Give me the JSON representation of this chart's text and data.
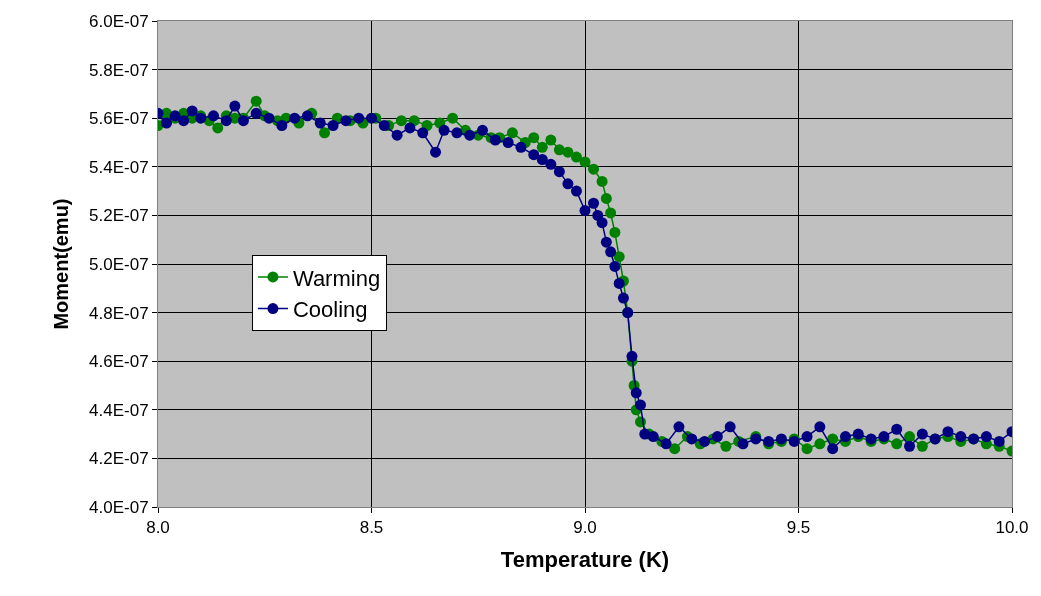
{
  "chart_data": {
    "type": "line",
    "xlabel": "Temperature (K)",
    "ylabel": "Moment(emu)",
    "xlim": [
      8.0,
      10.0
    ],
    "xticks": [
      {
        "value": 8.0,
        "label": "8.0"
      },
      {
        "value": 8.5,
        "label": "8.5"
      },
      {
        "value": 9.0,
        "label": "9.0"
      },
      {
        "value": 9.5,
        "label": "9.5"
      },
      {
        "value": 10.0,
        "label": "10.0"
      }
    ],
    "ylim": [
      4e-07,
      6e-07
    ],
    "yticks": [
      {
        "value": 4e-07,
        "label": "4.0E-07"
      },
      {
        "value": 4.2e-07,
        "label": "4.2E-07"
      },
      {
        "value": 4.4e-07,
        "label": "4.4E-07"
      },
      {
        "value": 4.6e-07,
        "label": "4.6E-07"
      },
      {
        "value": 4.8e-07,
        "label": "4.8E-07"
      },
      {
        "value": 5e-07,
        "label": "5.0E-07"
      },
      {
        "value": 5.2e-07,
        "label": "5.2E-07"
      },
      {
        "value": 5.4e-07,
        "label": "5.4E-07"
      },
      {
        "value": 5.6e-07,
        "label": "5.6E-07"
      },
      {
        "value": 5.8e-07,
        "label": "5.8E-07"
      },
      {
        "value": 6e-07,
        "label": "6.0E-07"
      }
    ],
    "grid": true,
    "legend": "left",
    "marker": "circle",
    "line_style": "solid",
    "series": [
      {
        "name": "Warming",
        "color": "#008000",
        "x": [
          8.0,
          8.02,
          8.04,
          8.06,
          8.08,
          8.1,
          8.12,
          8.14,
          8.16,
          8.18,
          8.2,
          8.23,
          8.25,
          8.28,
          8.3,
          8.33,
          8.36,
          8.39,
          8.42,
          8.45,
          8.48,
          8.51,
          8.54,
          8.57,
          8.6,
          8.63,
          8.66,
          8.69,
          8.72,
          8.75,
          8.78,
          8.8,
          8.83,
          8.86,
          8.88,
          8.9,
          8.92,
          8.94,
          8.96,
          8.98,
          9.0,
          9.02,
          9.04,
          9.05,
          9.06,
          9.07,
          9.08,
          9.09,
          9.1,
          9.11,
          9.115,
          9.12,
          9.13,
          9.15,
          9.18,
          9.21,
          9.24,
          9.27,
          9.3,
          9.33,
          9.36,
          9.4,
          9.43,
          9.46,
          9.49,
          9.52,
          9.55,
          9.58,
          9.61,
          9.64,
          9.67,
          9.7,
          9.73,
          9.76,
          9.79,
          9.82,
          9.85,
          9.88,
          9.91,
          9.94,
          9.97,
          10.0
        ],
        "values": [
          5.57e-07,
          5.62e-07,
          5.6e-07,
          5.62e-07,
          5.6e-07,
          5.61e-07,
          5.59e-07,
          5.56e-07,
          5.61e-07,
          5.6e-07,
          5.6e-07,
          5.67e-07,
          5.61e-07,
          5.59e-07,
          5.6e-07,
          5.58e-07,
          5.62e-07,
          5.54e-07,
          5.6e-07,
          5.59e-07,
          5.58e-07,
          5.6e-07,
          5.57e-07,
          5.59e-07,
          5.59e-07,
          5.57e-07,
          5.58e-07,
          5.6e-07,
          5.55e-07,
          5.53e-07,
          5.52e-07,
          5.52e-07,
          5.54e-07,
          5.5e-07,
          5.52e-07,
          5.48e-07,
          5.51e-07,
          5.47e-07,
          5.46e-07,
          5.44e-07,
          5.42e-07,
          5.39e-07,
          5.34e-07,
          5.27e-07,
          5.21e-07,
          5.13e-07,
          5.03e-07,
          4.93e-07,
          4.8e-07,
          4.6e-07,
          4.5e-07,
          4.4e-07,
          4.35e-07,
          4.3e-07,
          4.27e-07,
          4.24e-07,
          4.29e-07,
          4.26e-07,
          4.28e-07,
          4.25e-07,
          4.27e-07,
          4.29e-07,
          4.26e-07,
          4.27e-07,
          4.28e-07,
          4.24e-07,
          4.26e-07,
          4.28e-07,
          4.27e-07,
          4.29e-07,
          4.27e-07,
          4.28e-07,
          4.26e-07,
          4.29e-07,
          4.25e-07,
          4.28e-07,
          4.29e-07,
          4.27e-07,
          4.28e-07,
          4.26e-07,
          4.25e-07,
          4.23e-07
        ]
      },
      {
        "name": "Cooling",
        "color": "#000080",
        "x": [
          8.0,
          8.02,
          8.04,
          8.06,
          8.08,
          8.1,
          8.13,
          8.16,
          8.18,
          8.2,
          8.23,
          8.26,
          8.29,
          8.32,
          8.35,
          8.38,
          8.41,
          8.44,
          8.47,
          8.5,
          8.53,
          8.56,
          8.59,
          8.62,
          8.65,
          8.67,
          8.7,
          8.73,
          8.76,
          8.79,
          8.82,
          8.85,
          8.88,
          8.9,
          8.92,
          8.94,
          8.96,
          8.98,
          9.0,
          9.02,
          9.03,
          9.04,
          9.05,
          9.06,
          9.07,
          9.08,
          9.09,
          9.1,
          9.11,
          9.12,
          9.13,
          9.14,
          9.16,
          9.19,
          9.22,
          9.25,
          9.28,
          9.31,
          9.34,
          9.37,
          9.4,
          9.43,
          9.46,
          9.49,
          9.52,
          9.55,
          9.58,
          9.61,
          9.64,
          9.67,
          9.7,
          9.73,
          9.76,
          9.79,
          9.82,
          9.85,
          9.88,
          9.91,
          9.94,
          9.97,
          10.0
        ],
        "values": [
          5.62e-07,
          5.58e-07,
          5.61e-07,
          5.59e-07,
          5.63e-07,
          5.6e-07,
          5.61e-07,
          5.59e-07,
          5.65e-07,
          5.59e-07,
          5.62e-07,
          5.6e-07,
          5.57e-07,
          5.6e-07,
          5.61e-07,
          5.58e-07,
          5.57e-07,
          5.59e-07,
          5.6e-07,
          5.6e-07,
          5.57e-07,
          5.53e-07,
          5.56e-07,
          5.54e-07,
          5.46e-07,
          5.55e-07,
          5.54e-07,
          5.53e-07,
          5.55e-07,
          5.51e-07,
          5.5e-07,
          5.48e-07,
          5.45e-07,
          5.43e-07,
          5.41e-07,
          5.38e-07,
          5.33e-07,
          5.3e-07,
          5.22e-07,
          5.25e-07,
          5.2e-07,
          5.17e-07,
          5.09e-07,
          5.05e-07,
          4.99e-07,
          4.92e-07,
          4.86e-07,
          4.8e-07,
          4.62e-07,
          4.47e-07,
          4.42e-07,
          4.3e-07,
          4.29e-07,
          4.26e-07,
          4.33e-07,
          4.28e-07,
          4.27e-07,
          4.29e-07,
          4.33e-07,
          4.26e-07,
          4.28e-07,
          4.27e-07,
          4.28e-07,
          4.27e-07,
          4.29e-07,
          4.33e-07,
          4.24e-07,
          4.29e-07,
          4.3e-07,
          4.28e-07,
          4.29e-07,
          4.32e-07,
          4.25e-07,
          4.3e-07,
          4.28e-07,
          4.31e-07,
          4.29e-07,
          4.28e-07,
          4.29e-07,
          4.27e-07,
          4.31e-07
        ]
      }
    ]
  }
}
